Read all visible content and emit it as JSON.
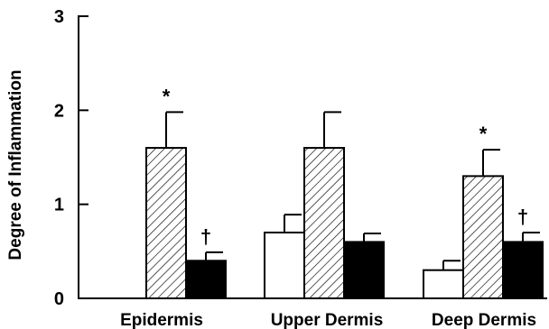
{
  "chart_data": {
    "type": "bar",
    "title": "",
    "xlabel": "",
    "ylabel": "Degree of Inflammation",
    "ylim": [
      0,
      3
    ],
    "yticks": [
      "0",
      "1",
      "2",
      "3"
    ],
    "categories": [
      "Epidermis",
      "Upper Dermis",
      "Deep Dermis"
    ],
    "series": [
      {
        "fill": "white",
        "color": "#ffffff",
        "values": [
          0,
          0.7,
          0.3
        ],
        "errors": [
          0,
          0.19,
          0.1
        ]
      },
      {
        "fill": "hatched",
        "color": "#ffffff",
        "values": [
          1.6,
          1.6,
          1.3
        ],
        "errors": [
          0.38,
          0.38,
          0.28
        ]
      },
      {
        "fill": "solid",
        "color": "#000000",
        "values": [
          0.4,
          0.6,
          0.6
        ],
        "errors": [
          0.09,
          0.09,
          0.1
        ]
      }
    ],
    "annotations": [
      {
        "text": "*",
        "category": 0,
        "series": 1
      },
      {
        "text": "†",
        "category": 0,
        "series": 2
      },
      {
        "text": "*",
        "category": 2,
        "series": 1
      },
      {
        "text": "†",
        "category": 2,
        "series": 2
      }
    ],
    "grid": false,
    "legend": "none"
  }
}
